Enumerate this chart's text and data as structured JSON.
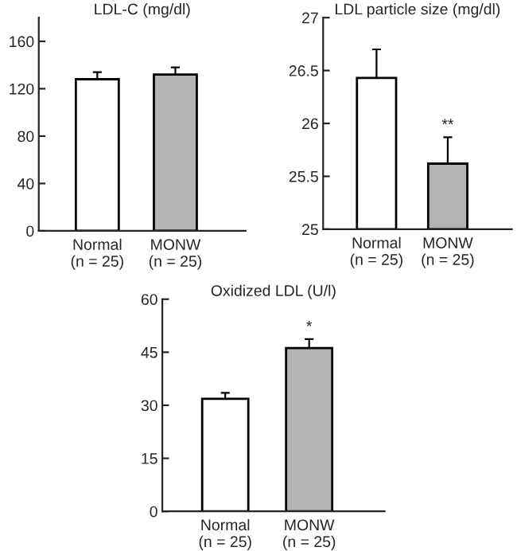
{
  "chart_data": [
    {
      "type": "bar",
      "title": "LDL-C (mg/dl)",
      "categories": [
        "Normal\n(n = 25)",
        "MONW\n(n = 25)"
      ],
      "values": [
        128,
        132
      ],
      "errors": [
        6,
        6
      ],
      "colors": [
        "#ffffff",
        "#b3b3b3"
      ],
      "ylim": [
        0,
        180
      ],
      "yticks": [
        0,
        40,
        80,
        120,
        160
      ],
      "grid": false,
      "legend": false
    },
    {
      "type": "bar",
      "title": "LDL particle size (mg/dl)",
      "categories": [
        "Normal\n(n = 25)",
        "MONW\n(n = 25)"
      ],
      "values": [
        26.43,
        25.62
      ],
      "errors": [
        0.27,
        0.25
      ],
      "colors": [
        "#ffffff",
        "#b3b3b3"
      ],
      "ylim": [
        25,
        27
      ],
      "yticks": [
        25,
        25.5,
        26,
        26.5,
        27
      ],
      "grid": false,
      "legend": false,
      "annotations": [
        "**"
      ]
    },
    {
      "type": "bar",
      "title": "Oxidized LDL (U/l)",
      "categories": [
        "Normal\n(n = 25)",
        "MONW\n(n = 25)"
      ],
      "values": [
        31.8,
        46.2
      ],
      "errors": [
        1.7,
        2.5
      ],
      "colors": [
        "#ffffff",
        "#b3b3b3"
      ],
      "ylim": [
        0,
        60
      ],
      "yticks": [
        0,
        15,
        30,
        45,
        60
      ],
      "grid": false,
      "legend": false,
      "annotations": [
        "*"
      ]
    }
  ]
}
